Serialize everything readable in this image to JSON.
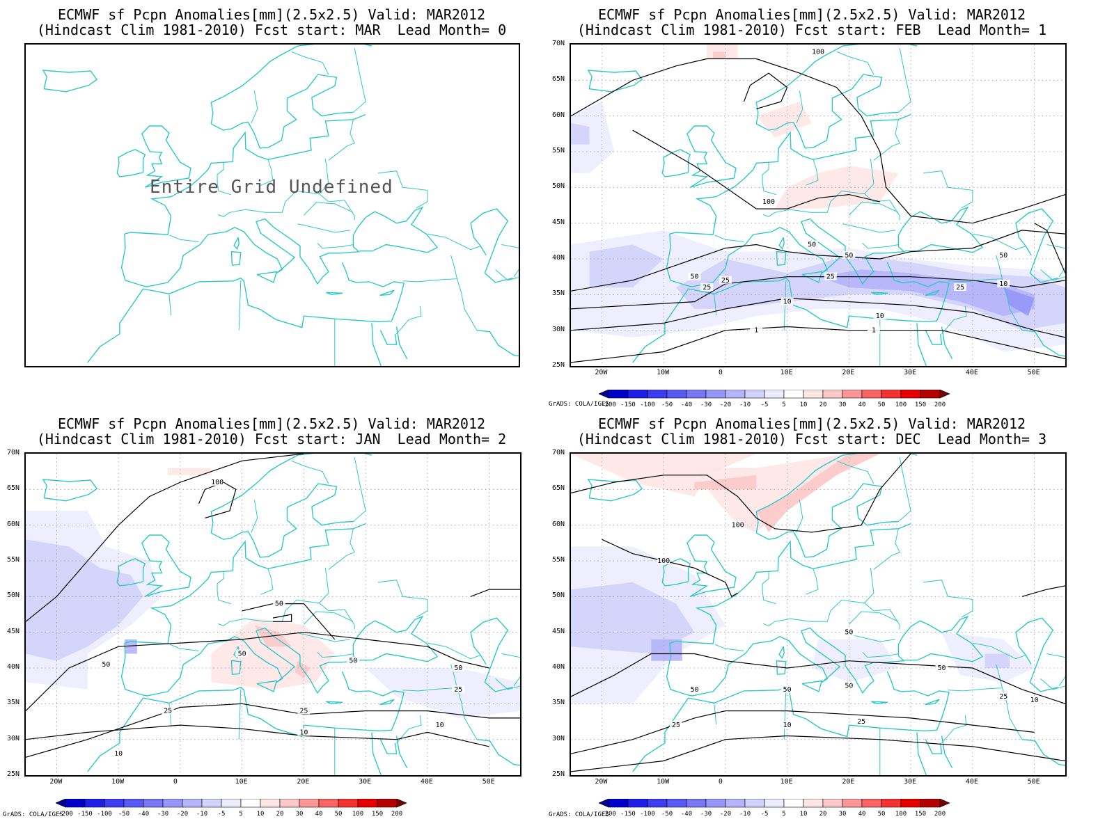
{
  "panels": [
    {
      "title_line1": "ECMWF sf Pcpn Anomalies[mm](2.5x2.5) Valid: MAR2012",
      "title_line2": "(Hindcast Clim 1981-2010) Fcst start: MAR  Lead Month= 0",
      "undefined_message": "Entire Grid Undefined",
      "has_data": false
    },
    {
      "title_line1": "ECMWF sf Pcpn Anomalies[mm](2.5x2.5) Valid: MAR2012",
      "title_line2": "(Hindcast Clim 1981-2010) Fcst start: FEB  Lead Month= 1",
      "has_data": true,
      "contour_labels": [
        "100",
        "100",
        "50",
        "50",
        "50",
        "50",
        "25",
        "25",
        "25",
        "25",
        "10",
        "10",
        "10",
        "1",
        "1"
      ]
    },
    {
      "title_line1": "ECMWF sf Pcpn Anomalies[mm](2.5x2.5) Valid: MAR2012",
      "title_line2": "(Hindcast Clim 1981-2010) Fcst start: JAN  Lead Month= 2",
      "has_data": true,
      "contour_labels": [
        "100",
        "50",
        "50",
        "50",
        "50",
        "50",
        "25",
        "25",
        "25",
        "10",
        "10",
        "10"
      ]
    },
    {
      "title_line1": "ECMWF sf Pcpn Anomalies[mm](2.5x2.5) Valid: MAR2012",
      "title_line2": "(Hindcast Clim 1981-2010) Fcst start: DEC  Lead Month= 3",
      "has_data": true,
      "contour_labels": [
        "100",
        "100",
        "50",
        "50",
        "50",
        "50",
        "50",
        "25",
        "25",
        "25",
        "10",
        "10"
      ]
    }
  ],
  "map_axes": {
    "lat_labels": [
      "70N",
      "65N",
      "60N",
      "55N",
      "50N",
      "45N",
      "40N",
      "35N",
      "30N",
      "25N"
    ],
    "lon_labels": [
      "20W",
      "10W",
      "0",
      "10E",
      "20E",
      "30E",
      "40E",
      "50E"
    ]
  },
  "colorbar": {
    "labels": [
      "-200",
      "-150",
      "-100",
      "-50",
      "-40",
      "-30",
      "-20",
      "-10",
      "-5",
      "5",
      "10",
      "20",
      "30",
      "40",
      "50",
      "100",
      "150",
      "200"
    ],
    "colors": [
      "#000096",
      "#0000c8",
      "#1e1ee6",
      "#3c3cf0",
      "#5a5af5",
      "#7878f5",
      "#9696fa",
      "#b4b4fa",
      "#d2d2fc",
      "#ececfe",
      "#ffffff",
      "#fee6e6",
      "#fcc8c8",
      "#fa9696",
      "#fa6464",
      "#f53232",
      "#e60000",
      "#b40000",
      "#780000"
    ],
    "credit": "GrADS: COLA/IGES"
  },
  "colors": {
    "coastline": "#2cc8c8",
    "contour": "#000000",
    "grid": "#9a9a9a"
  }
}
